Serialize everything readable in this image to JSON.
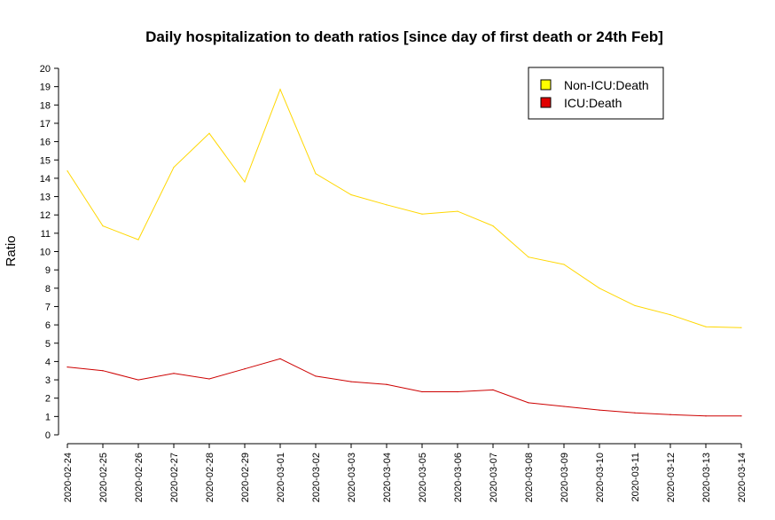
{
  "chart_data": {
    "type": "line",
    "title": "Daily hospitalization to death ratios [since day of first death or 24th Feb]",
    "xlabel": "",
    "ylabel": "Ratio",
    "ylim": [
      0,
      20
    ],
    "yticks": [
      "0",
      "1",
      "2",
      "3",
      "4",
      "5",
      "6",
      "7",
      "8",
      "9",
      "10",
      "11",
      "12",
      "13",
      "14",
      "15",
      "16",
      "17",
      "18",
      "19",
      "20"
    ],
    "grid": false,
    "legend_position": "top-right",
    "x": [
      "2020-02-24",
      "2020-02-25",
      "2020-02-26",
      "2020-02-27",
      "2020-02-28",
      "2020-02-29",
      "2020-03-01",
      "2020-03-02",
      "2020-03-03",
      "2020-03-04",
      "2020-03-05",
      "2020-03-06",
      "2020-03-07",
      "2020-03-08",
      "2020-03-09",
      "2020-03-10",
      "2020-03-11",
      "2020-03-12",
      "2020-03-13",
      "2020-03-14"
    ],
    "series": [
      {
        "name": "Non-ICU:Death",
        "color": "#FFD700",
        "legend_color": "#FFFF00",
        "values": [
          14.4,
          11.4,
          10.65,
          14.6,
          16.45,
          13.8,
          18.85,
          14.25,
          13.1,
          12.55,
          12.05,
          12.2,
          11.4,
          9.7,
          9.3,
          8.0,
          7.05,
          6.55,
          5.9,
          5.85
        ]
      },
      {
        "name": "ICU:Death",
        "color": "#CD0000",
        "legend_color": "#E00000",
        "values": [
          3.7,
          3.5,
          3.0,
          3.35,
          3.05,
          3.6,
          4.15,
          3.2,
          2.9,
          2.75,
          2.35,
          2.35,
          2.45,
          1.75,
          1.55,
          1.35,
          1.2,
          1.1,
          1.03,
          1.03
        ]
      }
    ]
  }
}
